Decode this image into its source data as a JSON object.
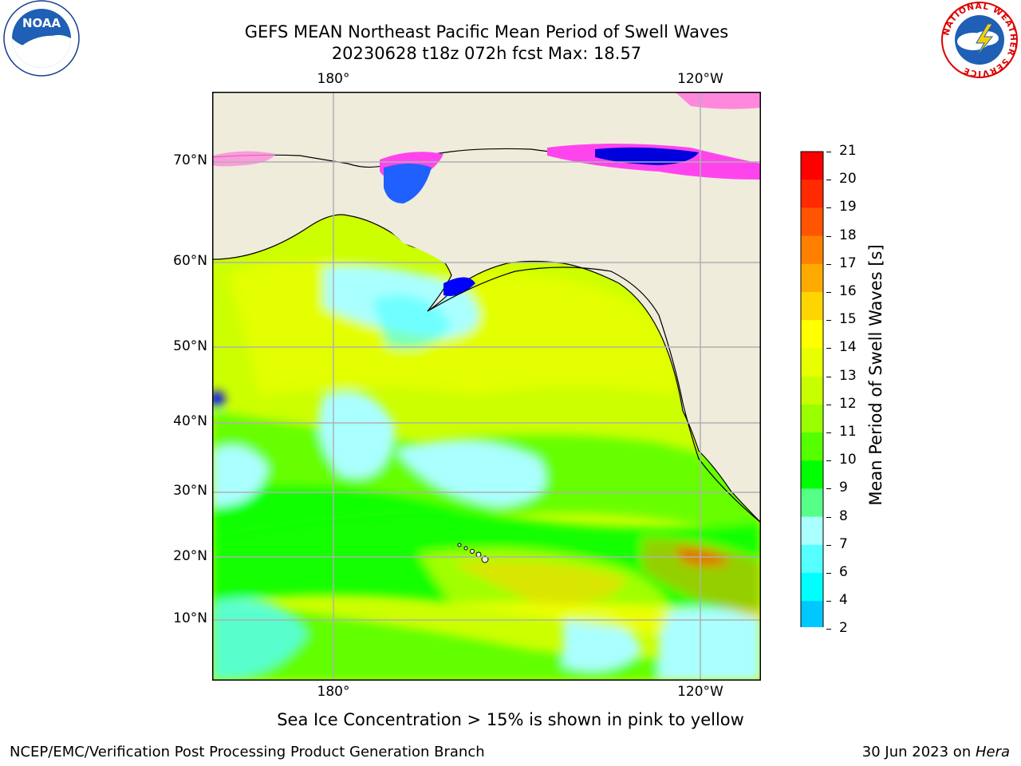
{
  "title": {
    "line1": "GEFS MEAN Northeast Pacific Mean Period of Swell Waves",
    "line2": "20230628 t18z 072h fcst   Max: 18.57"
  },
  "map": {
    "lon_labels": [
      "180°",
      "120°W"
    ],
    "lat_labels": [
      "70°N",
      "60°N",
      "50°N",
      "40°N",
      "30°N",
      "20°N",
      "10°N"
    ],
    "land_color": "#efecdc",
    "grid_color": "#b0b0b0"
  },
  "colorbar": {
    "title": "Mean Period of Swell Waves [s]",
    "ticks": [
      "21",
      "20",
      "19",
      "18",
      "17",
      "16",
      "15",
      "14",
      "13",
      "12",
      "11",
      "10",
      "9",
      "8",
      "7",
      "6",
      "4",
      "2"
    ],
    "colors": [
      "#ff0000",
      "#ff2a00",
      "#ff5500",
      "#ff8000",
      "#ffaa00",
      "#ffd500",
      "#ffff00",
      "#e8ff00",
      "#c8ff00",
      "#99ff00",
      "#55ff00",
      "#00ff00",
      "#55ff88",
      "#aaffff",
      "#55ffff",
      "#00ffff",
      "#00c8ff",
      "#0088ff",
      "#0000ff"
    ]
  },
  "footer": {
    "note": "Sea Ice Concentration > 15% is shown in pink to yellow",
    "left": "NCEP/EMC/Verification Post Processing Product Generation Branch",
    "right_date": "30 Jun 2023 on ",
    "right_host": "Hera"
  },
  "logos": {
    "noaa_text": "NOAA",
    "nws_ring_text": "NATIONAL WEATHER SERVICE"
  }
}
